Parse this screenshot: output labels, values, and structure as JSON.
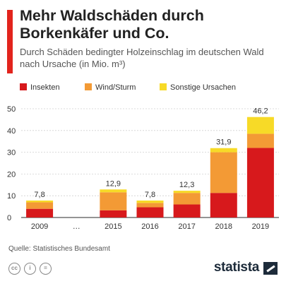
{
  "header": {
    "title": "Mehr Waldschäden durch Borkenkäfer und Co.",
    "subtitle": "Durch Schäden bedingter Holzeinschlag im deutschen Wald nach Ursache (in Mio. m³)"
  },
  "colors": {
    "accent": "#e2241d",
    "insekten": "#d7191c",
    "wind": "#f39a35",
    "sonstige": "#f7da27"
  },
  "chart_data": {
    "type": "bar",
    "stacked": true,
    "categories": [
      "2009",
      "…",
      "2015",
      "2016",
      "2017",
      "2018",
      "2019"
    ],
    "series": [
      {
        "name": "Insekten",
        "values": [
          4.0,
          null,
          3.3,
          4.7,
          6.0,
          11.3,
          32.0
        ]
      },
      {
        "name": "Wind/Sturm",
        "values": [
          3.0,
          null,
          8.3,
          2.0,
          5.3,
          18.7,
          6.5
        ]
      },
      {
        "name": "Sonstige Ursachen",
        "values": [
          0.8,
          null,
          1.3,
          1.1,
          1.0,
          1.9,
          7.7
        ]
      }
    ],
    "totals": [
      7.8,
      null,
      12.9,
      7.8,
      12.3,
      31.9,
      46.2
    ],
    "total_labels": [
      "7,8",
      "",
      "12,9",
      "7,8",
      "12,3",
      "31,9",
      "46,2"
    ],
    "yticks": [
      "0",
      "10",
      "20",
      "30",
      "40",
      "50"
    ],
    "ylim": [
      0,
      50
    ],
    "grid": true,
    "legend_position": "top"
  },
  "footer": {
    "source": "Quelle: Statistisches Bundesamt",
    "cc_icons": [
      {
        "name": "cc-icon",
        "text": "cc"
      },
      {
        "name": "by-icon",
        "text": "i"
      },
      {
        "name": "equals-icon",
        "text": "="
      }
    ],
    "brand": "statista"
  }
}
